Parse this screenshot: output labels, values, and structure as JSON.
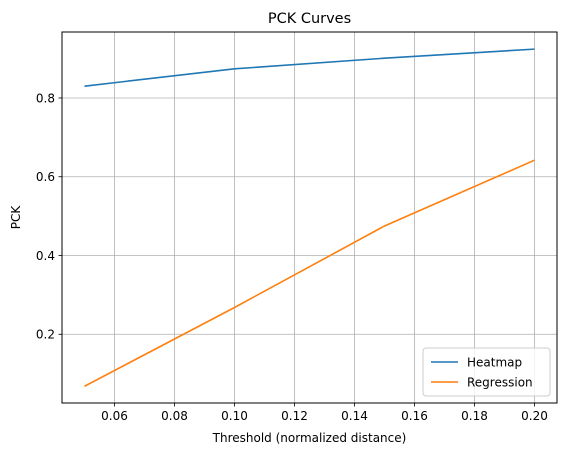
{
  "chart_data": {
    "type": "line",
    "title": "PCK Curves",
    "xlabel": "Threshold (normalized distance)",
    "ylabel": "PCK",
    "xlim": [
      0.0425,
      0.2075
    ],
    "ylim": [
      0.0255,
      0.9675
    ],
    "xticks": [
      0.06,
      0.08,
      0.1,
      0.12,
      0.14,
      0.16,
      0.18,
      0.2
    ],
    "xtick_labels": [
      "0.06",
      "0.08",
      "0.10",
      "0.12",
      "0.14",
      "0.16",
      "0.18",
      "0.20"
    ],
    "yticks": [
      0.2,
      0.4,
      0.6,
      0.8
    ],
    "ytick_labels": [
      "0.2",
      "0.4",
      "0.6",
      "0.8"
    ],
    "grid": true,
    "legend_position": "lower-right",
    "x": [
      0.05,
      0.1,
      0.15,
      0.2
    ],
    "series": [
      {
        "name": "Heatmap",
        "color": "#1f77b4",
        "values": [
          0.83,
          0.874,
          0.901,
          0.924
        ]
      },
      {
        "name": "Regression",
        "color": "#ff7f0e",
        "values": [
          0.068,
          0.268,
          0.475,
          0.642
        ]
      }
    ]
  }
}
